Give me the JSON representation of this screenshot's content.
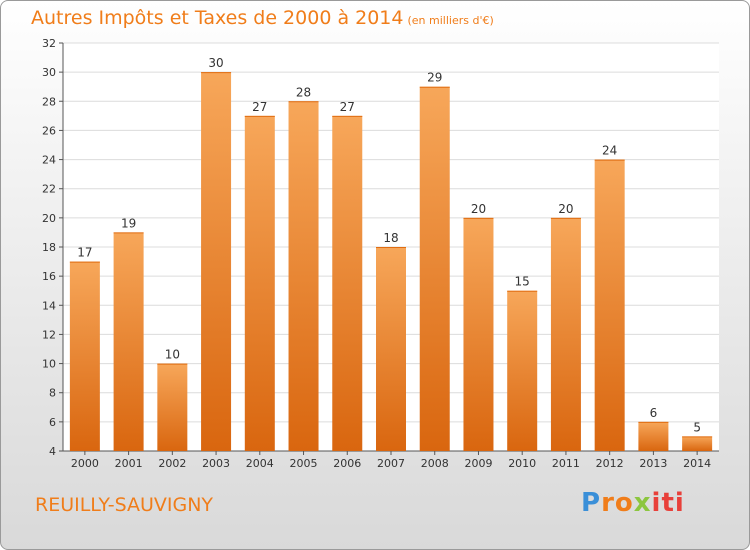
{
  "title": "Autres Impôts et Taxes de 2000 à 2014",
  "title_unit": "(en milliers d'€)",
  "commune": "REUILLY-SAUVIGNY",
  "logo": {
    "p1": "P",
    "p2": "ro",
    "p3": "x",
    "p4": "iti"
  },
  "colors": {
    "bar_top": "#f7a75a",
    "bar_bottom": "#d9660f",
    "accent": "#f07d1a",
    "grid": "#dcdcdc"
  },
  "chart_data": {
    "type": "bar",
    "title": "Autres Impôts et Taxes de 2000 à 2014",
    "categories": [
      "2000",
      "2001",
      "2002",
      "2003",
      "2004",
      "2005",
      "2006",
      "2007",
      "2008",
      "2009",
      "2010",
      "2011",
      "2012",
      "2013",
      "2014"
    ],
    "values": [
      17,
      19,
      10,
      30,
      27,
      28,
      27,
      18,
      29,
      20,
      15,
      20,
      24,
      6,
      5
    ],
    "ylim": [
      4,
      32
    ],
    "yticks": [
      4,
      6,
      8,
      10,
      12,
      14,
      16,
      18,
      20,
      22,
      24,
      26,
      28,
      30,
      32
    ],
    "grid": true,
    "data_labels": true
  }
}
